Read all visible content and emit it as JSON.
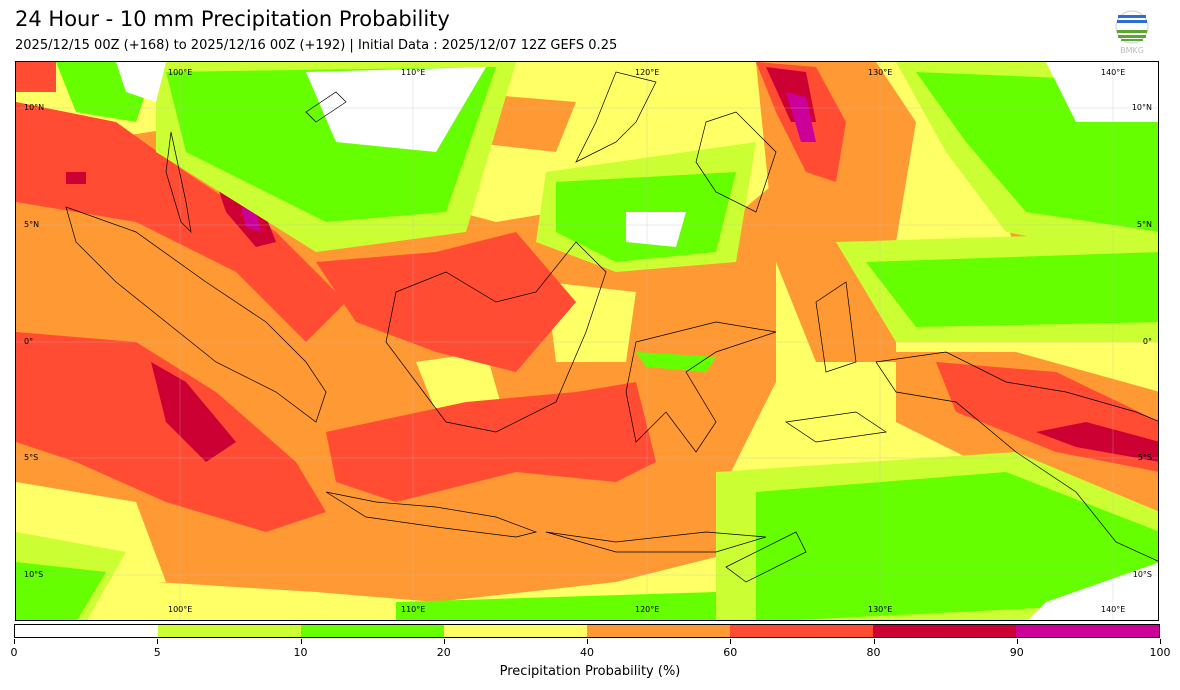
{
  "header": {
    "title": "24 Hour - 10 mm Precipitation Probability",
    "subtitle": "2025/12/15 00Z (+168) to 2025/12/16 00Z (+192) | Initial Data : 2025/12/07 12Z GEFS 0.25"
  },
  "logo": {
    "text": "BMKG"
  },
  "map": {
    "lon_labels": [
      "100°E",
      "110°E",
      "120°E",
      "130°E",
      "140°E"
    ],
    "lat_labels": [
      "10°N",
      "5°N",
      "0°",
      "5°S",
      "10°S"
    ]
  },
  "colorbar": {
    "title": "Precipitation Probability (%)",
    "ticks": [
      "0",
      "5",
      "10",
      "20",
      "40",
      "60",
      "80",
      "90",
      "100"
    ],
    "colors": [
      "#ffffff",
      "#ccff33",
      "#66ff00",
      "#ffff66",
      "#ff9933",
      "#ff4c33",
      "#cc0033",
      "#cc0099"
    ]
  }
}
